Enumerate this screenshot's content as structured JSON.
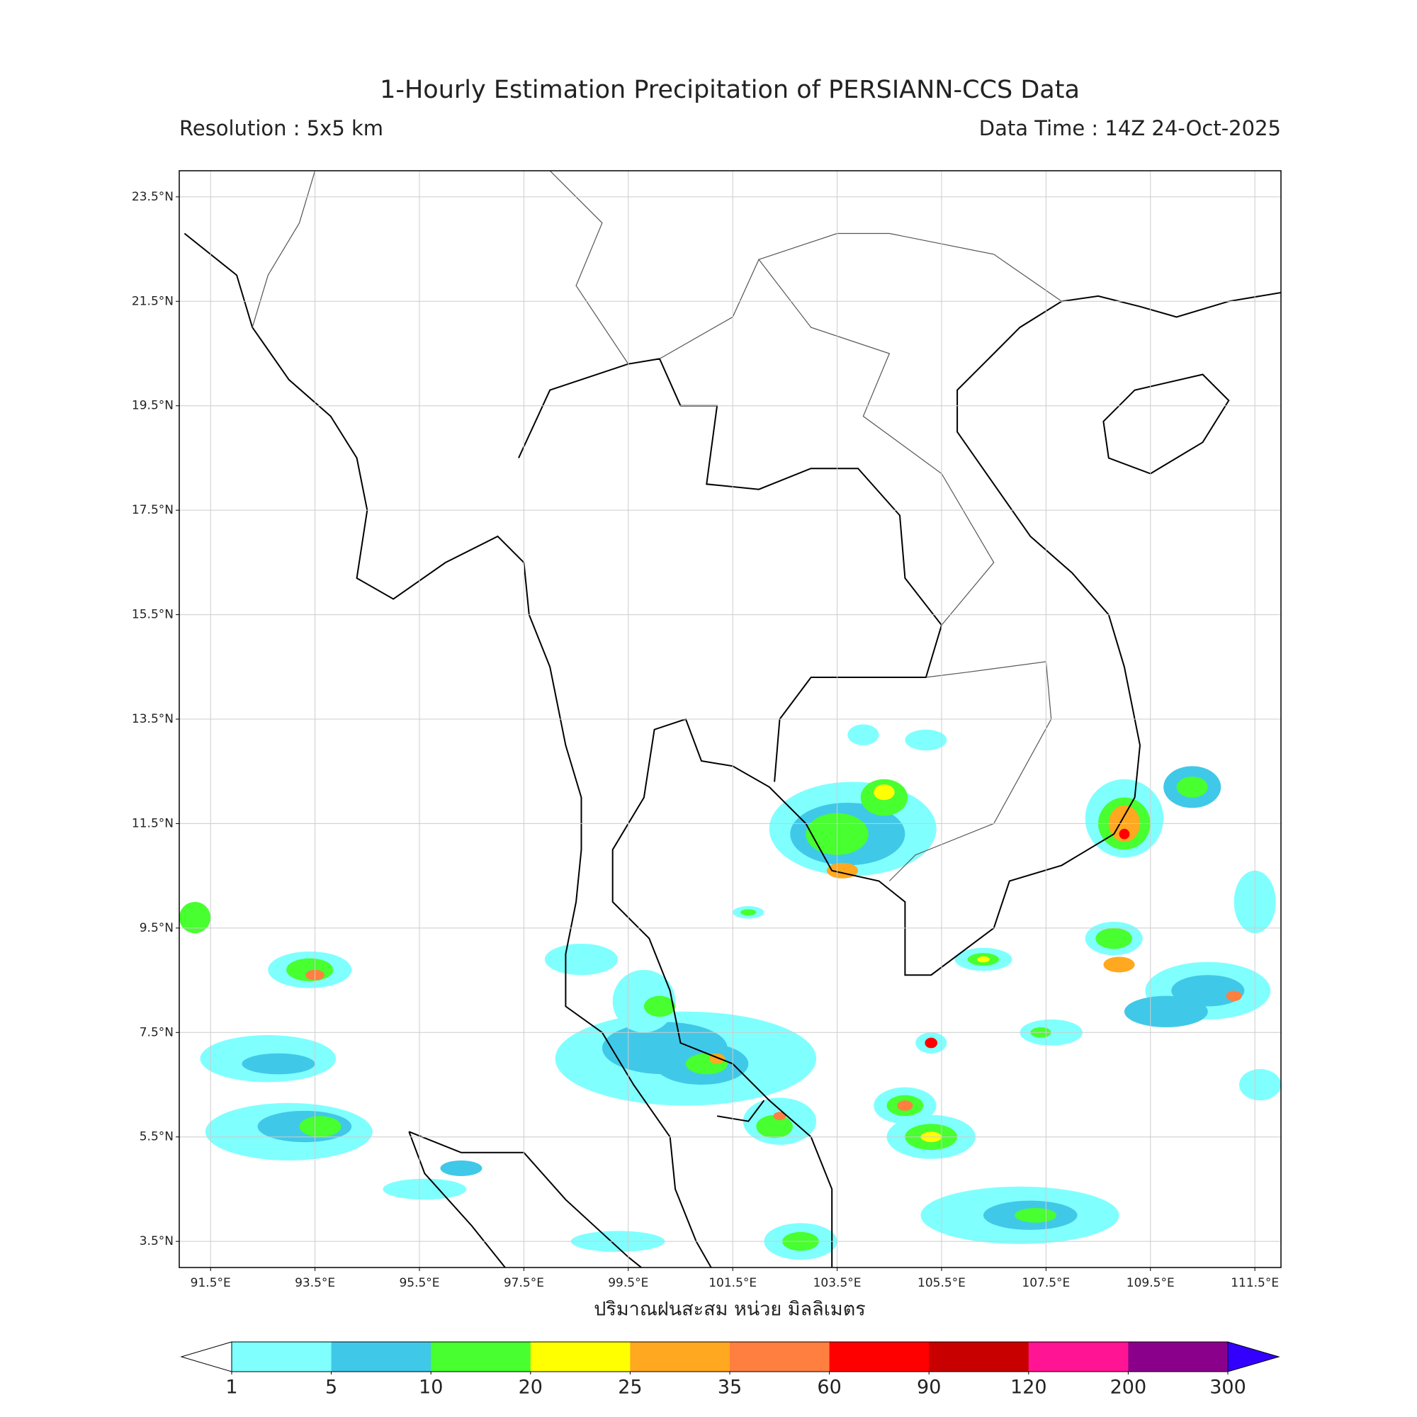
{
  "title": "1-Hourly Estimation Precipitation of PERSIANN-CCS Data",
  "resolution": "Resolution : 5x5 km",
  "data_time": "Data Time : 14Z 24-Oct-2025",
  "map": {
    "xlim": [
      90.9,
      112.0
    ],
    "ylim": [
      3.0,
      24.0
    ],
    "grid": true,
    "xticks": [
      {
        "value": 91.5,
        "label": "91.5°E"
      },
      {
        "value": 93.5,
        "label": "93.5°E"
      },
      {
        "value": 95.5,
        "label": "95.5°E"
      },
      {
        "value": 97.5,
        "label": "97.5°E"
      },
      {
        "value": 99.5,
        "label": "99.5°E"
      },
      {
        "value": 101.5,
        "label": "101.5°E"
      },
      {
        "value": 103.5,
        "label": "103.5°E"
      },
      {
        "value": 105.5,
        "label": "105.5°E"
      },
      {
        "value": 107.5,
        "label": "107.5°E"
      },
      {
        "value": 109.5,
        "label": "109.5°E"
      },
      {
        "value": 111.5,
        "label": "111.5°E"
      }
    ],
    "yticks": [
      {
        "value": 3.5,
        "label": "3.5°N"
      },
      {
        "value": 5.5,
        "label": "5.5°N"
      },
      {
        "value": 7.5,
        "label": "7.5°N"
      },
      {
        "value": 9.5,
        "label": "9.5°N"
      },
      {
        "value": 11.5,
        "label": "11.5°N"
      },
      {
        "value": 13.5,
        "label": "13.5°N"
      },
      {
        "value": 15.5,
        "label": "15.5°N"
      },
      {
        "value": 17.5,
        "label": "17.5°N"
      },
      {
        "value": 19.5,
        "label": "19.5°N"
      },
      {
        "value": 21.5,
        "label": "21.5°N"
      },
      {
        "value": 23.5,
        "label": "23.5°N"
      }
    ]
  },
  "xlabel": "ปริมาณฝนสะสม หน่วย มิลลิเมตร",
  "colorbar": {
    "bounds": [
      1,
      5,
      10,
      20,
      25,
      35,
      60,
      90,
      120,
      200,
      300
    ],
    "colors": [
      "#80ffff",
      "#40c8e8",
      "#48ff30",
      "#ffff00",
      "#ffa820",
      "#ff7f40",
      "#ff0000",
      "#c80000",
      "#ff1493",
      "#8b008b"
    ],
    "under_color": "#ffffff",
    "over_color": "#3300ff"
  }
}
